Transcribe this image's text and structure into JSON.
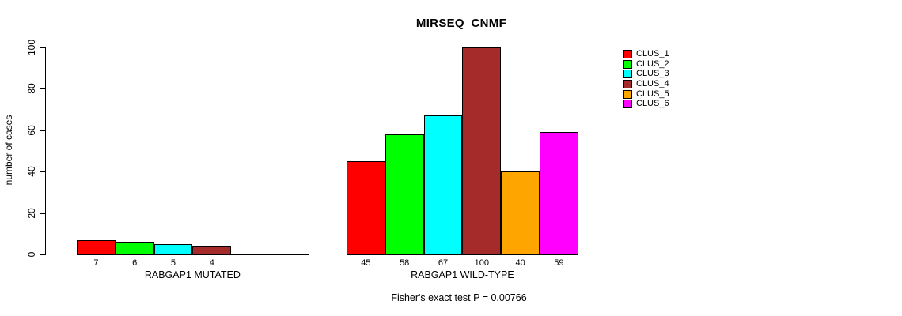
{
  "title": "MIRSEQ_CNMF",
  "footer": "Fisher's exact test P = 0.00766",
  "y_axis": {
    "label": "number of cases",
    "ticks": [
      0,
      20,
      40,
      60,
      80,
      100
    ]
  },
  "chart_data": {
    "type": "bar",
    "title": "MIRSEQ_CNMF",
    "xlabel": "",
    "ylabel": "number of cases",
    "ylim": [
      0,
      100
    ],
    "yticks": [
      0,
      20,
      40,
      60,
      80,
      100
    ],
    "grid": false,
    "legend_position": "right",
    "bar_value_labels": true,
    "categories": [
      "RABGAP1 MUTATED",
      "RABGAP1 WILD-TYPE"
    ],
    "series": [
      {
        "name": "CLUS_1",
        "color": "#FF0000",
        "values": [
          7,
          45
        ]
      },
      {
        "name": "CLUS_2",
        "color": "#00FF00",
        "values": [
          6,
          58
        ]
      },
      {
        "name": "CLUS_3",
        "color": "#00FFFF",
        "values": [
          5,
          67
        ]
      },
      {
        "name": "CLUS_4",
        "color": "#A52A2A",
        "values": [
          4,
          100
        ]
      },
      {
        "name": "CLUS_5",
        "color": "#FFA500",
        "values": [
          0,
          40
        ]
      },
      {
        "name": "CLUS_6",
        "color": "#FF00FF",
        "values": [
          0,
          59
        ]
      }
    ],
    "annotation": "Fisher's exact test P = 0.00766"
  }
}
